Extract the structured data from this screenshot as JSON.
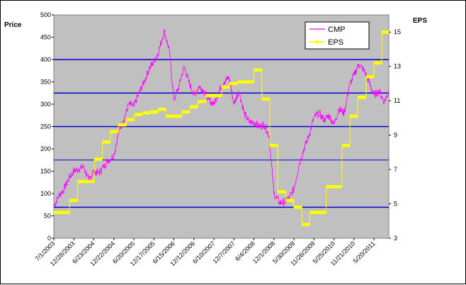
{
  "chart_data": {
    "type": "line",
    "title": "",
    "ylabel_left": "Price",
    "ylabel_right": "EPS",
    "xlabel": "",
    "left_axis": {
      "min": 0,
      "max": 500,
      "ticks": [
        "0",
        "50",
        "100",
        "150",
        "200",
        "250",
        "300",
        "350",
        "400",
        "450",
        "500"
      ]
    },
    "right_axis": {
      "min": 3,
      "max": 16,
      "ticks": [
        "3",
        "5",
        "7",
        "9",
        "11",
        "13",
        "15"
      ]
    },
    "x_tick_labels": [
      "7/1/2003",
      "12/28/2003",
      "6/23/2004",
      "12/22/2004",
      "6/20/2005",
      "12/17/2005",
      "6/15/2006",
      "12/12/2006",
      "6/10/2007",
      "12/7/2007",
      "6/4/2008",
      "12/1/2008",
      "5/30/2009",
      "11/26/2009",
      "5/25/2010",
      "11/21/2010",
      "5/20/2011"
    ],
    "x_domain": [
      "7/1/2003",
      "9/30/2011"
    ],
    "grid": "horizontal lines",
    "background_color": "#c0c0c0",
    "gridline_color": "#0000cc",
    "legend_position": "top-right",
    "series": [
      {
        "name": "CMP",
        "axis": "left",
        "color": "#ff00ff",
        "x": [
          "7/1/2003",
          "8/15/2003",
          "10/1/2003",
          "11/15/2003",
          "12/28/2003",
          "2/10/2004",
          "3/25/2004",
          "5/10/2004",
          "6/23/2004",
          "8/7/2004",
          "9/20/2004",
          "11/5/2004",
          "12/22/2004",
          "2/5/2005",
          "3/22/2005",
          "5/5/2005",
          "6/20/2005",
          "8/5/2005",
          "9/20/2005",
          "11/5/2005",
          "12/17/2005",
          "2/1/2006",
          "3/20/2006",
          "5/5/2006",
          "6/15/2006",
          "7/30/2006",
          "9/15/2006",
          "10/28/2006",
          "12/12/2006",
          "1/28/2007",
          "3/12/2007",
          "4/25/2007",
          "6/10/2007",
          "7/25/2007",
          "9/10/2007",
          "10/25/2007",
          "12/7/2007",
          "1/22/2008",
          "3/8/2008",
          "4/20/2008",
          "6/4/2008",
          "7/20/2008",
          "9/3/2008",
          "10/18/2008",
          "12/1/2008",
          "1/18/2009",
          "3/2/2009",
          "4/15/2009",
          "5/30/2009",
          "7/15/2009",
          "8/28/2009",
          "10/12/2009",
          "11/26/2009",
          "1/10/2010",
          "2/25/2010",
          "4/10/2010",
          "5/25/2010",
          "7/10/2010",
          "8/25/2010",
          "10/8/2010",
          "11/21/2010",
          "1/5/2011",
          "2/20/2011",
          "4/5/2011",
          "5/20/2011",
          "7/5/2011",
          "8/20/2011",
          "9/30/2011"
        ],
        "y": [
          72,
          95,
          110,
          135,
          150,
          155,
          160,
          130,
          150,
          145,
          160,
          175,
          185,
          240,
          265,
          300,
          295,
          325,
          350,
          380,
          395,
          420,
          465,
          420,
          310,
          340,
          385,
          350,
          320,
          340,
          330,
          310,
          300,
          330,
          350,
          360,
          300,
          330,
          280,
          260,
          260,
          250,
          255,
          230,
          100,
          80,
          80,
          90,
          110,
          165,
          200,
          230,
          270,
          280,
          265,
          275,
          255,
          290,
          280,
          340,
          365,
          390,
          375,
          350,
          320,
          330,
          305,
          330
        ]
      },
      {
        "name": "EPS",
        "axis": "right",
        "color": "#ffff00",
        "x": [
          "7/1/2003",
          "9/10/2003",
          "11/20/2003",
          "2/1/2004",
          "4/15/2004",
          "6/30/2004",
          "9/10/2004",
          "11/20/2004",
          "2/1/2005",
          "4/15/2005",
          "6/25/2005",
          "9/5/2005",
          "11/15/2005",
          "1/25/2006",
          "4/5/2006",
          "6/15/2006",
          "8/25/2006",
          "11/5/2006",
          "1/15/2007",
          "3/30/2007",
          "6/10/2007",
          "8/20/2007",
          "10/30/2007",
          "1/10/2008",
          "3/25/2008",
          "6/4/2008",
          "8/15/2008",
          "10/25/2008",
          "1/5/2009",
          "3/20/2009",
          "5/30/2009",
          "8/10/2009",
          "10/20/2009",
          "12/30/2009",
          "3/15/2010",
          "5/25/2010",
          "8/5/2010",
          "10/15/2010",
          "12/25/2010",
          "3/10/2011",
          "5/20/2011",
          "7/30/2011",
          "9/30/2011"
        ],
        "y": [
          4.5,
          4.5,
          5.2,
          6.3,
          6.3,
          7.6,
          8.6,
          9.2,
          9.6,
          9.9,
          10.2,
          10.3,
          10.35,
          10.5,
          10.1,
          10.1,
          10.35,
          10.65,
          10.95,
          11.3,
          11.3,
          11.8,
          12.0,
          12.1,
          12.1,
          12.8,
          11.1,
          8.4,
          5.7,
          5.2,
          4.8,
          3.8,
          4.5,
          4.5,
          6.0,
          6.0,
          8.4,
          10.1,
          11.2,
          12.4,
          13.2,
          15.0,
          15.0
        ]
      }
    ]
  }
}
